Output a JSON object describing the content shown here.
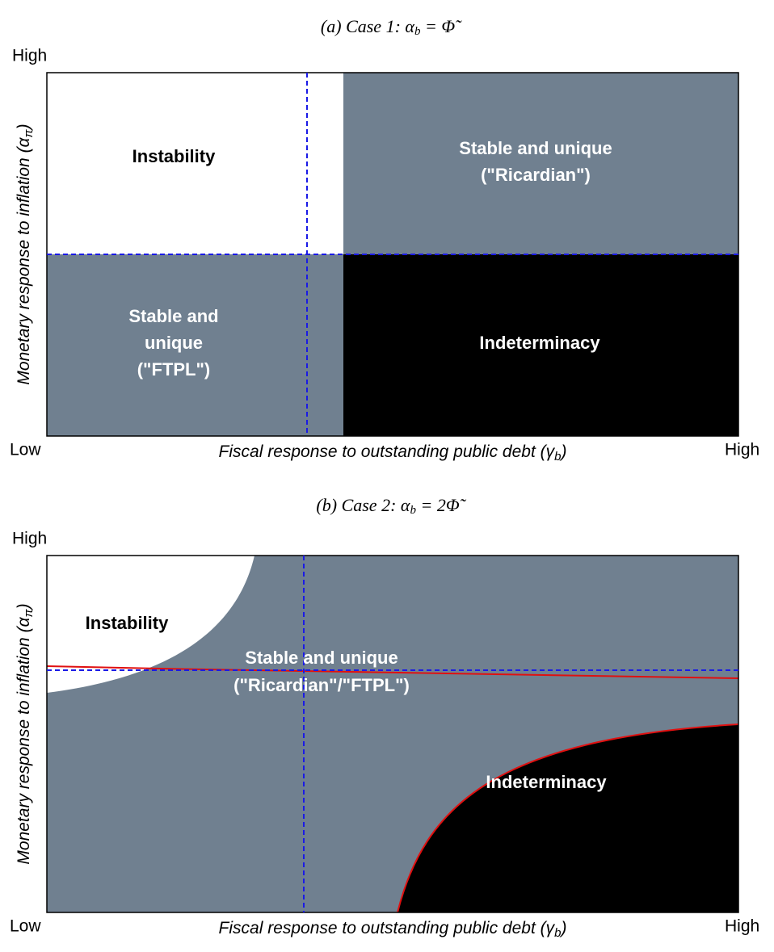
{
  "panels": [
    {
      "title": "(a) Case 1:",
      "title_symbol": "α",
      "title_sub": "b",
      "title_rest": " = Φ̃",
      "y_label": "Monetary response to inflation (α",
      "y_sub": "π",
      "y_close": ")",
      "x_label": "Fiscal response to outstanding public debt (γ",
      "x_sub": "b",
      "x_close": ")",
      "y_high": "High",
      "x_low": "Low",
      "x_high": "High",
      "regions": [
        {
          "lines": [
            "Instability"
          ]
        },
        {
          "lines": [
            "Stable and unique",
            "(\"Ricardian\")"
          ]
        },
        {
          "lines": [
            "Stable and",
            "unique",
            "(\"FTPL\")"
          ]
        },
        {
          "lines": [
            "Indeterminacy"
          ]
        }
      ]
    },
    {
      "title": "(b) Case 2:",
      "title_symbol": "α",
      "title_sub": "b",
      "title_rest": " = 2Φ̃",
      "y_label": "Monetary response to inflation (α",
      "y_sub": "π",
      "y_close": ")",
      "x_label": "Fiscal response to outstanding public debt (γ",
      "x_sub": "b",
      "x_close": ")",
      "y_high": "High",
      "x_low": "Low",
      "x_high": "High",
      "regions": [
        {
          "lines": [
            "Instability"
          ]
        },
        {
          "lines": [
            "Stable and unique",
            "(\"Ricardian\"/\"FTPL\")"
          ]
        },
        {
          "lines": [
            "Indeterminacy"
          ]
        }
      ]
    }
  ]
}
